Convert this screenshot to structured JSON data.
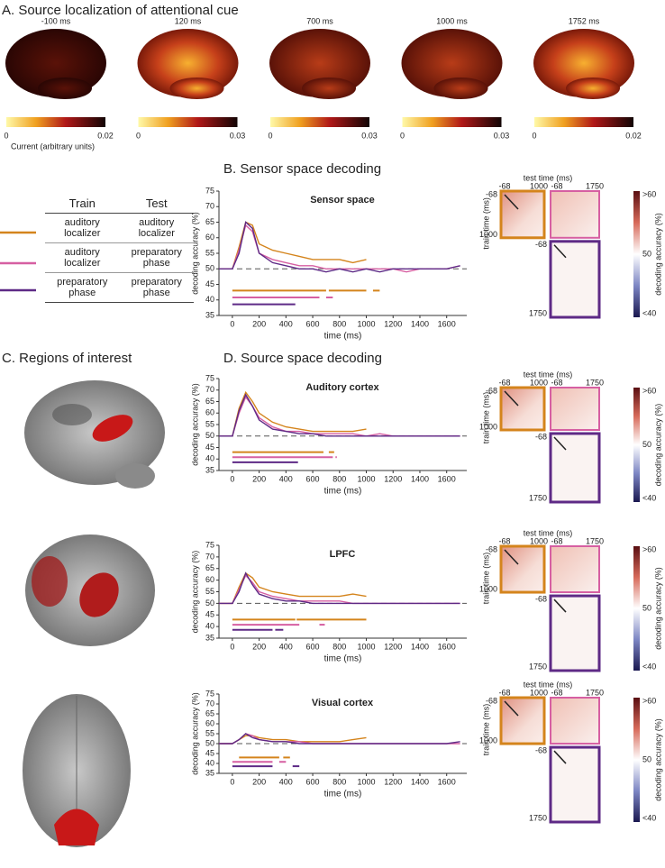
{
  "panel_a": {
    "title": "A. Source localization of attentional cue",
    "maps": [
      {
        "label": "-100 ms",
        "cmin": 0,
        "cmax": 0.02
      },
      {
        "label": "120 ms",
        "cmin": 0,
        "cmax": 0.03
      },
      {
        "label": "700 ms",
        "cmin": 0,
        "cmax": 0.03
      },
      {
        "label": "1000 ms",
        "cmin": 0,
        "cmax": 0.03
      },
      {
        "label": "1752 ms",
        "cmin": 0,
        "cmax": 0.02
      }
    ],
    "unit": "Current (arbitrary units)"
  },
  "panel_b": {
    "title": "B. Sensor space decoding"
  },
  "table": {
    "header": [
      "Train",
      "Test"
    ],
    "rows": [
      [
        "auditory localizer",
        "auditory localizer"
      ],
      [
        "auditory localizer",
        "preparatory phase"
      ],
      [
        "preparatory phase",
        "preparatory phase"
      ]
    ],
    "colors": [
      "#d4841c",
      "#d65fa2",
      "#5e2a86"
    ]
  },
  "panel_c": {
    "title": "C. Regions of interest"
  },
  "panel_d": {
    "title": "D. Source space decoding"
  },
  "heatmap_labels": {
    "test_time": "test time (ms)",
    "train_time": "train time (ms)",
    "ticks": [
      "-68",
      "1000",
      "1750"
    ],
    "colorbar": [
      ">60",
      "50",
      "<40"
    ],
    "colorbar_label": "decoding accuracy (%)"
  },
  "chart_data": [
    {
      "type": "line",
      "title": "Sensor space",
      "x_label": "time (ms)",
      "y_label": "decoding accuracy (%)",
      "x": [
        -100,
        0,
        50,
        100,
        150,
        200,
        300,
        400,
        500,
        600,
        700,
        800,
        900,
        1000,
        1100,
        1200,
        1300,
        1400,
        1500,
        1600,
        1700
      ],
      "xlim": [
        -100,
        1750
      ],
      "xticks": [
        0,
        200,
        400,
        600,
        800,
        1000,
        1200,
        1400,
        1600
      ],
      "ylim": [
        35,
        75
      ],
      "yticks": [
        35,
        40,
        45,
        50,
        55,
        60,
        65,
        70,
        75
      ],
      "chance": 50,
      "series": [
        {
          "color": "#d4841c",
          "values": [
            50,
            50,
            57,
            65,
            64,
            58,
            56,
            55,
            54,
            53,
            53,
            53,
            52,
            53,
            null,
            null,
            null,
            null,
            null,
            null,
            null
          ],
          "significance": [
            [
              0,
              700
            ],
            [
              720,
              1000
            ],
            [
              1050,
              1100
            ]
          ]
        },
        {
          "color": "#d65fa2",
          "values": [
            50,
            50,
            56,
            64,
            62,
            55,
            53,
            52,
            51,
            51,
            50,
            50,
            50,
            50,
            50,
            50,
            49,
            50,
            50,
            50,
            51
          ],
          "significance": [
            [
              0,
              650
            ],
            [
              700,
              750
            ]
          ]
        },
        {
          "color": "#5e2a86",
          "values": [
            50,
            50,
            55,
            65,
            63,
            55,
            52,
            51,
            50,
            50,
            49,
            50,
            49,
            50,
            49,
            50,
            50,
            50,
            50,
            50,
            51
          ],
          "significance": [
            [
              0,
              470
            ]
          ]
        }
      ]
    },
    {
      "type": "line",
      "title": "Auditory cortex",
      "x_label": "time (ms)",
      "y_label": "decoding accuracy (%)",
      "x": [
        -100,
        0,
        50,
        100,
        150,
        200,
        300,
        400,
        500,
        600,
        700,
        800,
        900,
        1000,
        1100,
        1200,
        1300,
        1400,
        1500,
        1600,
        1700
      ],
      "xlim": [
        -100,
        1750
      ],
      "xticks": [
        0,
        200,
        400,
        600,
        800,
        1000,
        1200,
        1400,
        1600
      ],
      "ylim": [
        35,
        75
      ],
      "yticks": [
        35,
        40,
        45,
        50,
        55,
        60,
        65,
        70,
        75
      ],
      "chance": 50,
      "series": [
        {
          "color": "#d4841c",
          "values": [
            50,
            50,
            62,
            69,
            65,
            60,
            56,
            54,
            53,
            52,
            52,
            52,
            52,
            53,
            null,
            null,
            null,
            null,
            null,
            null,
            null
          ],
          "significance": [
            [
              0,
              680
            ],
            [
              720,
              760
            ]
          ]
        },
        {
          "color": "#d65fa2",
          "values": [
            50,
            50,
            60,
            67,
            63,
            58,
            54,
            52,
            52,
            51,
            51,
            51,
            51,
            50,
            51,
            50,
            50,
            50,
            50,
            50,
            50
          ],
          "significance": [
            [
              0,
              750
            ],
            [
              770,
              780
            ]
          ]
        },
        {
          "color": "#5e2a86",
          "values": [
            50,
            50,
            61,
            68,
            63,
            57,
            53,
            52,
            51,
            51,
            50,
            50,
            50,
            50,
            50,
            50,
            50,
            50,
            50,
            50,
            50
          ],
          "significance": [
            [
              0,
              490
            ]
          ]
        }
      ]
    },
    {
      "type": "line",
      "title": "LPFC",
      "x_label": "time (ms)",
      "y_label": "decoding accuracy (%)",
      "x": [
        -100,
        0,
        50,
        100,
        150,
        200,
        300,
        400,
        500,
        600,
        700,
        800,
        900,
        1000,
        1100,
        1200,
        1300,
        1400,
        1500,
        1600,
        1700
      ],
      "xlim": [
        -100,
        1750
      ],
      "xticks": [
        0,
        200,
        400,
        600,
        800,
        1000,
        1200,
        1400,
        1600
      ],
      "ylim": [
        35,
        75
      ],
      "yticks": [
        35,
        40,
        45,
        50,
        55,
        60,
        65,
        70,
        75
      ],
      "chance": 50,
      "series": [
        {
          "color": "#d4841c",
          "values": [
            50,
            50,
            57,
            63,
            61,
            57,
            55,
            54,
            53,
            53,
            53,
            53,
            54,
            53,
            null,
            null,
            null,
            null,
            null,
            null,
            null
          ],
          "significance": [
            [
              0,
              470
            ],
            [
              480,
              1000
            ]
          ]
        },
        {
          "color": "#d65fa2",
          "values": [
            50,
            50,
            56,
            62,
            59,
            55,
            53,
            52,
            51,
            51,
            51,
            51,
            50,
            50,
            50,
            50,
            50,
            50,
            50,
            50,
            50
          ],
          "significance": [
            [
              0,
              500
            ],
            [
              650,
              690
            ]
          ]
        },
        {
          "color": "#5e2a86",
          "values": [
            50,
            50,
            55,
            63,
            58,
            54,
            52,
            51,
            51,
            50,
            50,
            50,
            50,
            50,
            50,
            50,
            50,
            50,
            50,
            50,
            50
          ],
          "significance": [
            [
              0,
              300
            ],
            [
              320,
              380
            ]
          ]
        }
      ]
    },
    {
      "type": "line",
      "title": "Visual cortex",
      "x_label": "time (ms)",
      "y_label": "decoding accuracy (%)",
      "x": [
        -100,
        0,
        50,
        100,
        150,
        200,
        300,
        400,
        500,
        600,
        700,
        800,
        900,
        1000,
        1100,
        1200,
        1300,
        1400,
        1500,
        1600,
        1700
      ],
      "xlim": [
        -100,
        1750
      ],
      "xticks": [
        0,
        200,
        400,
        600,
        800,
        1000,
        1200,
        1400,
        1600
      ],
      "ylim": [
        35,
        75
      ],
      "yticks": [
        35,
        40,
        45,
        50,
        55,
        60,
        65,
        70,
        75
      ],
      "chance": 50,
      "series": [
        {
          "color": "#d4841c",
          "values": [
            50,
            50,
            52,
            54,
            54,
            53,
            52,
            52,
            51,
            51,
            51,
            51,
            52,
            53,
            null,
            null,
            null,
            null,
            null,
            null,
            null
          ],
          "significance": [
            [
              50,
              350
            ],
            [
              380,
              430
            ]
          ]
        },
        {
          "color": "#d65fa2",
          "values": [
            50,
            50,
            52,
            55,
            54,
            52,
            51,
            51,
            51,
            50,
            50,
            50,
            50,
            50,
            50,
            50,
            50,
            50,
            50,
            50,
            50
          ],
          "significance": [
            [
              0,
              300
            ],
            [
              350,
              400
            ]
          ]
        },
        {
          "color": "#5e2a86",
          "values": [
            50,
            50,
            52,
            55,
            53,
            52,
            51,
            51,
            50,
            50,
            50,
            50,
            50,
            50,
            50,
            50,
            50,
            50,
            50,
            50,
            51
          ],
          "significance": [
            [
              0,
              300
            ],
            [
              450,
              500
            ]
          ]
        }
      ]
    }
  ]
}
